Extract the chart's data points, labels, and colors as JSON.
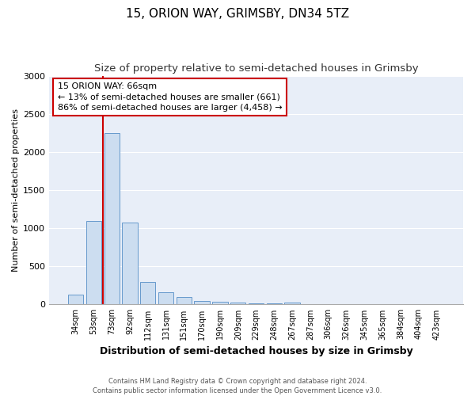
{
  "title": "15, ORION WAY, GRIMSBY, DN34 5TZ",
  "subtitle": "Size of property relative to semi-detached houses in Grimsby",
  "xlabel": "Distribution of semi-detached houses by size in Grimsby",
  "ylabel": "Number of semi-detached properties",
  "categories": [
    "34sqm",
    "53sqm",
    "73sqm",
    "92sqm",
    "112sqm",
    "131sqm",
    "151sqm",
    "170sqm",
    "190sqm",
    "209sqm",
    "229sqm",
    "248sqm",
    "267sqm",
    "287sqm",
    "306sqm",
    "326sqm",
    "345sqm",
    "365sqm",
    "384sqm",
    "404sqm",
    "423sqm"
  ],
  "values": [
    130,
    1100,
    2250,
    1075,
    295,
    160,
    95,
    50,
    40,
    30,
    20,
    12,
    30,
    5,
    3,
    3,
    2,
    2,
    1,
    1,
    1
  ],
  "bar_color": "#ccddf0",
  "bar_edge_color": "#6699cc",
  "property_line_x": 1.5,
  "annotation_text": "15 ORION WAY: 66sqm\n← 13% of semi-detached houses are smaller (661)\n86% of semi-detached houses are larger (4,458) →",
  "annotation_box_color": "#ffffff",
  "annotation_box_edge": "#cc0000",
  "vline_color": "#cc0000",
  "ylim": [
    0,
    3000
  ],
  "background_color": "#e8eef8",
  "grid_color": "#ffffff",
  "footer_text": "Contains HM Land Registry data © Crown copyright and database right 2024.\nContains public sector information licensed under the Open Government Licence v3.0.",
  "title_fontsize": 11,
  "subtitle_fontsize": 9.5,
  "ylabel_fontsize": 8,
  "xlabel_fontsize": 9,
  "annotation_fontsize": 8,
  "footer_fontsize": 6
}
